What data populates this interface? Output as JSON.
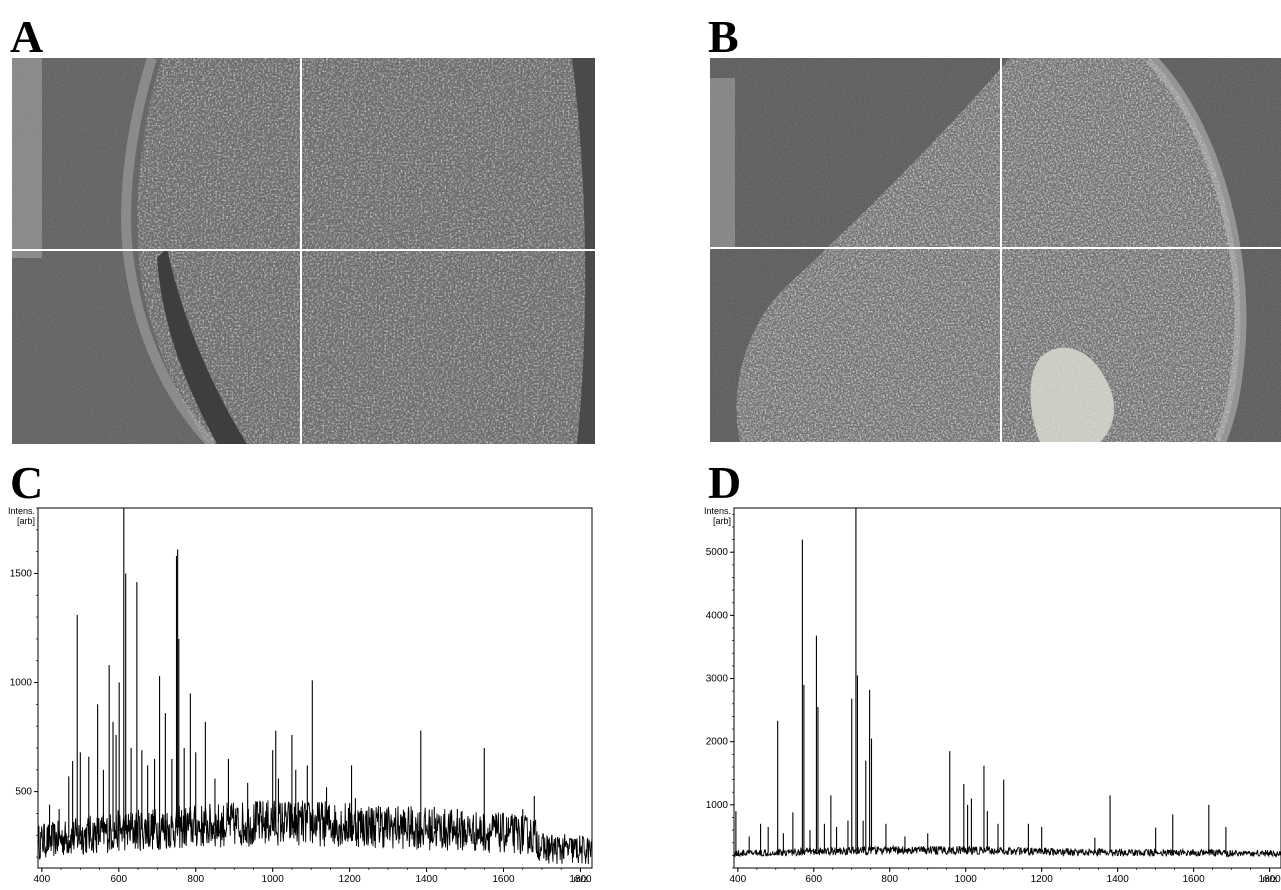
{
  "panels": {
    "a": {
      "letter": "A"
    },
    "b": {
      "letter": "B"
    },
    "c": {
      "letter": "C"
    },
    "d": {
      "letter": "D"
    }
  },
  "chart_data": [
    {
      "panel": "C",
      "type": "line",
      "ylabel": "Intens.\n[arb]",
      "xlabel": "m/z",
      "xlim": [
        390,
        1830
      ],
      "ylim": [
        150,
        1800
      ],
      "x_ticks": [
        400,
        600,
        800,
        1000,
        1200,
        1400,
        1600,
        1800
      ],
      "y_ticks": [
        500,
        1000,
        1500
      ],
      "grid": false,
      "baseline": [
        [
          390,
          270
        ],
        [
          600,
          320
        ],
        [
          800,
          340
        ],
        [
          1000,
          360
        ],
        [
          1200,
          350
        ],
        [
          1400,
          330
        ],
        [
          1600,
          310
        ],
        [
          1680,
          300
        ],
        [
          1700,
          240
        ],
        [
          1830,
          230
        ]
      ],
      "peaks": [
        {
          "x": 405,
          "y": 350
        },
        {
          "x": 420,
          "y": 440
        },
        {
          "x": 445,
          "y": 420
        },
        {
          "x": 470,
          "y": 570
        },
        {
          "x": 480,
          "y": 640
        },
        {
          "x": 492,
          "y": 1310
        },
        {
          "x": 500,
          "y": 680
        },
        {
          "x": 522,
          "y": 660
        },
        {
          "x": 545,
          "y": 900
        },
        {
          "x": 560,
          "y": 600
        },
        {
          "x": 575,
          "y": 1080
        },
        {
          "x": 585,
          "y": 820
        },
        {
          "x": 593,
          "y": 760
        },
        {
          "x": 601,
          "y": 1000
        },
        {
          "x": 613,
          "y": 1830
        },
        {
          "x": 618,
          "y": 1500
        },
        {
          "x": 632,
          "y": 700
        },
        {
          "x": 647,
          "y": 1460
        },
        {
          "x": 660,
          "y": 690
        },
        {
          "x": 675,
          "y": 620
        },
        {
          "x": 693,
          "y": 650
        },
        {
          "x": 706,
          "y": 1030
        },
        {
          "x": 721,
          "y": 860
        },
        {
          "x": 738,
          "y": 650
        },
        {
          "x": 750,
          "y": 1580
        },
        {
          "x": 753,
          "y": 1610
        },
        {
          "x": 756,
          "y": 1200
        },
        {
          "x": 770,
          "y": 700
        },
        {
          "x": 786,
          "y": 950
        },
        {
          "x": 800,
          "y": 680
        },
        {
          "x": 825,
          "y": 820
        },
        {
          "x": 850,
          "y": 560
        },
        {
          "x": 885,
          "y": 650
        },
        {
          "x": 935,
          "y": 540
        },
        {
          "x": 1000,
          "y": 690
        },
        {
          "x": 1008,
          "y": 780
        },
        {
          "x": 1015,
          "y": 560
        },
        {
          "x": 1050,
          "y": 760
        },
        {
          "x": 1060,
          "y": 600
        },
        {
          "x": 1090,
          "y": 620
        },
        {
          "x": 1103,
          "y": 1010
        },
        {
          "x": 1140,
          "y": 520
        },
        {
          "x": 1205,
          "y": 620
        },
        {
          "x": 1215,
          "y": 470
        },
        {
          "x": 1280,
          "y": 430
        },
        {
          "x": 1385,
          "y": 780
        },
        {
          "x": 1420,
          "y": 430
        },
        {
          "x": 1480,
          "y": 420
        },
        {
          "x": 1550,
          "y": 700
        },
        {
          "x": 1580,
          "y": 400
        },
        {
          "x": 1650,
          "y": 420
        },
        {
          "x": 1680,
          "y": 480
        }
      ]
    },
    {
      "panel": "D",
      "type": "line",
      "ylabel": "Intens.\n[arb]",
      "xlabel": "m/z",
      "xlim": [
        390,
        1830
      ],
      "ylim": [
        0,
        5700
      ],
      "x_ticks": [
        400,
        600,
        800,
        1000,
        1200,
        1400,
        1600,
        1800
      ],
      "y_ticks": [
        1000,
        2000,
        3000,
        4000,
        5000
      ],
      "grid": false,
      "baseline": [
        [
          390,
          230
        ],
        [
          600,
          260
        ],
        [
          800,
          280
        ],
        [
          1000,
          280
        ],
        [
          1200,
          260
        ],
        [
          1400,
          250
        ],
        [
          1600,
          240
        ],
        [
          1830,
          230
        ]
      ],
      "peaks": [
        {
          "x": 395,
          "y": 900
        },
        {
          "x": 430,
          "y": 500
        },
        {
          "x": 460,
          "y": 700
        },
        {
          "x": 480,
          "y": 650
        },
        {
          "x": 505,
          "y": 2330
        },
        {
          "x": 520,
          "y": 550
        },
        {
          "x": 545,
          "y": 880
        },
        {
          "x": 570,
          "y": 5200
        },
        {
          "x": 574,
          "y": 2900
        },
        {
          "x": 590,
          "y": 600
        },
        {
          "x": 607,
          "y": 3680
        },
        {
          "x": 611,
          "y": 2550
        },
        {
          "x": 628,
          "y": 700
        },
        {
          "x": 645,
          "y": 1150
        },
        {
          "x": 660,
          "y": 650
        },
        {
          "x": 690,
          "y": 750
        },
        {
          "x": 700,
          "y": 2680
        },
        {
          "x": 711,
          "y": 5700
        },
        {
          "x": 715,
          "y": 3050
        },
        {
          "x": 730,
          "y": 750
        },
        {
          "x": 737,
          "y": 1700
        },
        {
          "x": 747,
          "y": 2820
        },
        {
          "x": 752,
          "y": 2050
        },
        {
          "x": 790,
          "y": 700
        },
        {
          "x": 840,
          "y": 500
        },
        {
          "x": 900,
          "y": 550
        },
        {
          "x": 958,
          "y": 1850
        },
        {
          "x": 995,
          "y": 1330
        },
        {
          "x": 1005,
          "y": 1000
        },
        {
          "x": 1015,
          "y": 1100
        },
        {
          "x": 1048,
          "y": 1620
        },
        {
          "x": 1057,
          "y": 900
        },
        {
          "x": 1085,
          "y": 700
        },
        {
          "x": 1100,
          "y": 1400
        },
        {
          "x": 1165,
          "y": 700
        },
        {
          "x": 1200,
          "y": 650
        },
        {
          "x": 1340,
          "y": 480
        },
        {
          "x": 1380,
          "y": 1150
        },
        {
          "x": 1500,
          "y": 640
        },
        {
          "x": 1545,
          "y": 850
        },
        {
          "x": 1640,
          "y": 1000
        },
        {
          "x": 1685,
          "y": 650
        }
      ]
    }
  ]
}
